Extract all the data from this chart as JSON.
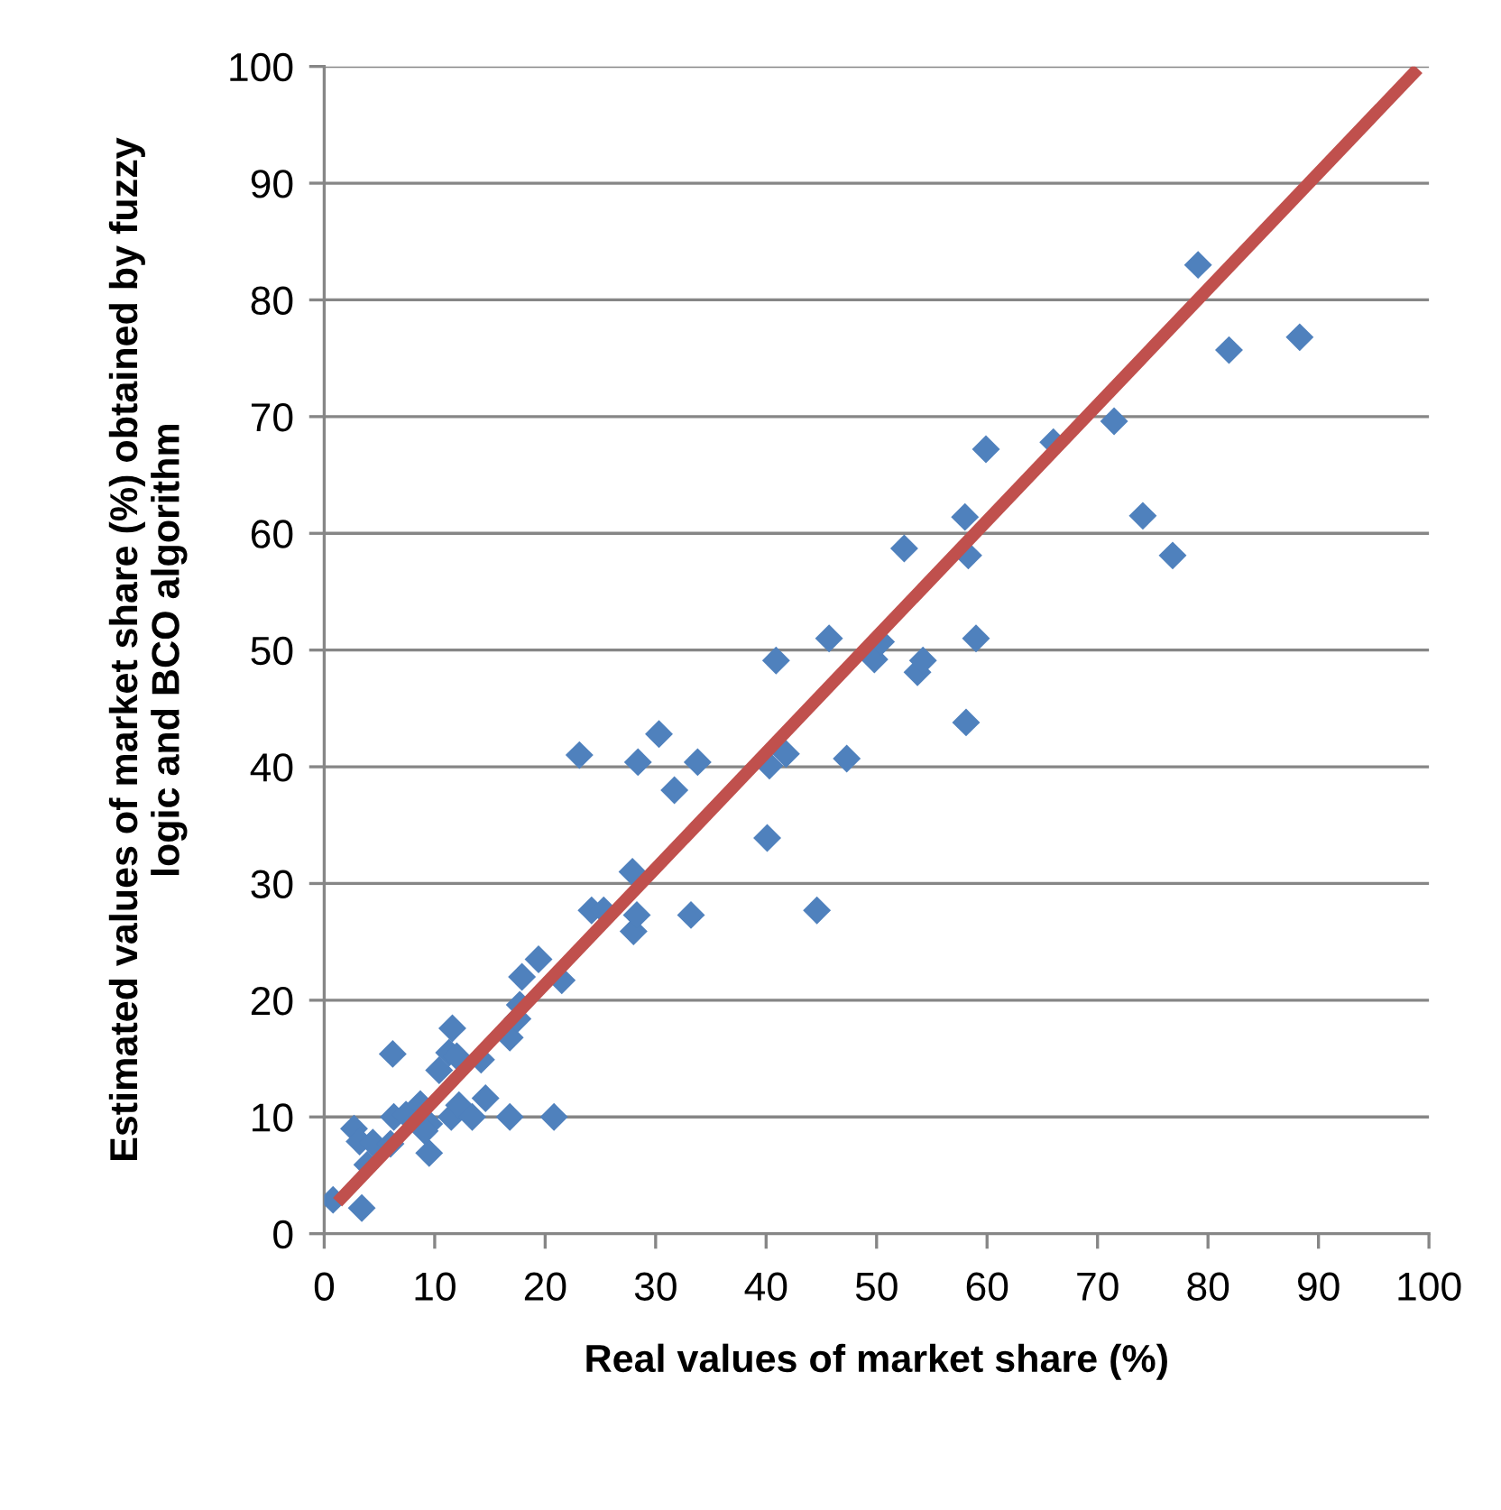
{
  "chart_data": {
    "type": "scatter",
    "xlabel": "Real values of market share (%)",
    "ylabel": "Estimated values of market share (%) obtained by fuzzy logic and BCO algorithm",
    "series": [
      {
        "color": "#4f81bd",
        "marker": "diamond",
        "x": [
          0.8,
          3.4,
          2.7,
          3.2,
          4.4,
          3.9,
          6.2,
          6.3,
          7.4,
          6.0,
          8.7,
          9.5,
          9.5,
          9.1,
          10.4,
          11.6,
          11.3,
          12.0,
          11.5,
          12.2,
          13.4,
          14.6,
          14.2,
          16.8,
          16.8,
          17.5,
          17.7,
          17.9,
          19.4,
          20.8,
          21.5,
          23.1,
          24.2,
          25.3,
          27.9,
          28.0,
          28.3,
          28.4,
          30.3,
          31.7,
          33.2,
          33.8,
          40.1,
          40.3,
          40.9,
          41.8,
          44.6,
          45.7,
          47.3,
          49.8,
          50.4,
          52.5,
          53.7,
          54.2,
          58.1,
          58.0,
          58.3,
          59.0,
          59.9,
          66.0,
          71.5,
          74.1,
          76.8,
          79.1,
          81.9,
          88.3
        ],
        "values": [
          2.9,
          2.2,
          9.0,
          7.9,
          7.8,
          5.9,
          15.4,
          10.0,
          10.2,
          7.7,
          11.1,
          9.4,
          6.9,
          8.8,
          14.0,
          17.6,
          15.5,
          15.2,
          10.0,
          11.0,
          10.0,
          11.6,
          14.9,
          10.0,
          16.8,
          18.4,
          19.6,
          22.0,
          23.5,
          10.0,
          21.7,
          41.0,
          27.7,
          27.7,
          31.0,
          25.9,
          27.3,
          40.4,
          42.8,
          38.0,
          27.3,
          40.4,
          33.9,
          40.1,
          49.1,
          41.1,
          27.7,
          51.0,
          40.7,
          49.2,
          50.7,
          58.7,
          48.1,
          49.1,
          43.8,
          61.4,
          58.1,
          51.0,
          67.2,
          67.8,
          69.6,
          61.5,
          58.1,
          83.0,
          75.7,
          76.8
        ]
      },
      {
        "type": "line",
        "color": "#c0504d",
        "marker": "none",
        "line_style": "solid",
        "x": [
          1.2,
          99.0
        ],
        "values": [
          2.7,
          99.8
        ]
      }
    ],
    "xlim": [
      0,
      100
    ],
    "xticks": [
      0,
      10,
      20,
      30,
      40,
      50,
      60,
      70,
      80,
      90,
      100
    ],
    "ylim": [
      0,
      100
    ],
    "yticks": [
      0,
      10,
      20,
      30,
      40,
      50,
      60,
      70,
      80,
      90,
      100
    ],
    "grid": "y"
  }
}
